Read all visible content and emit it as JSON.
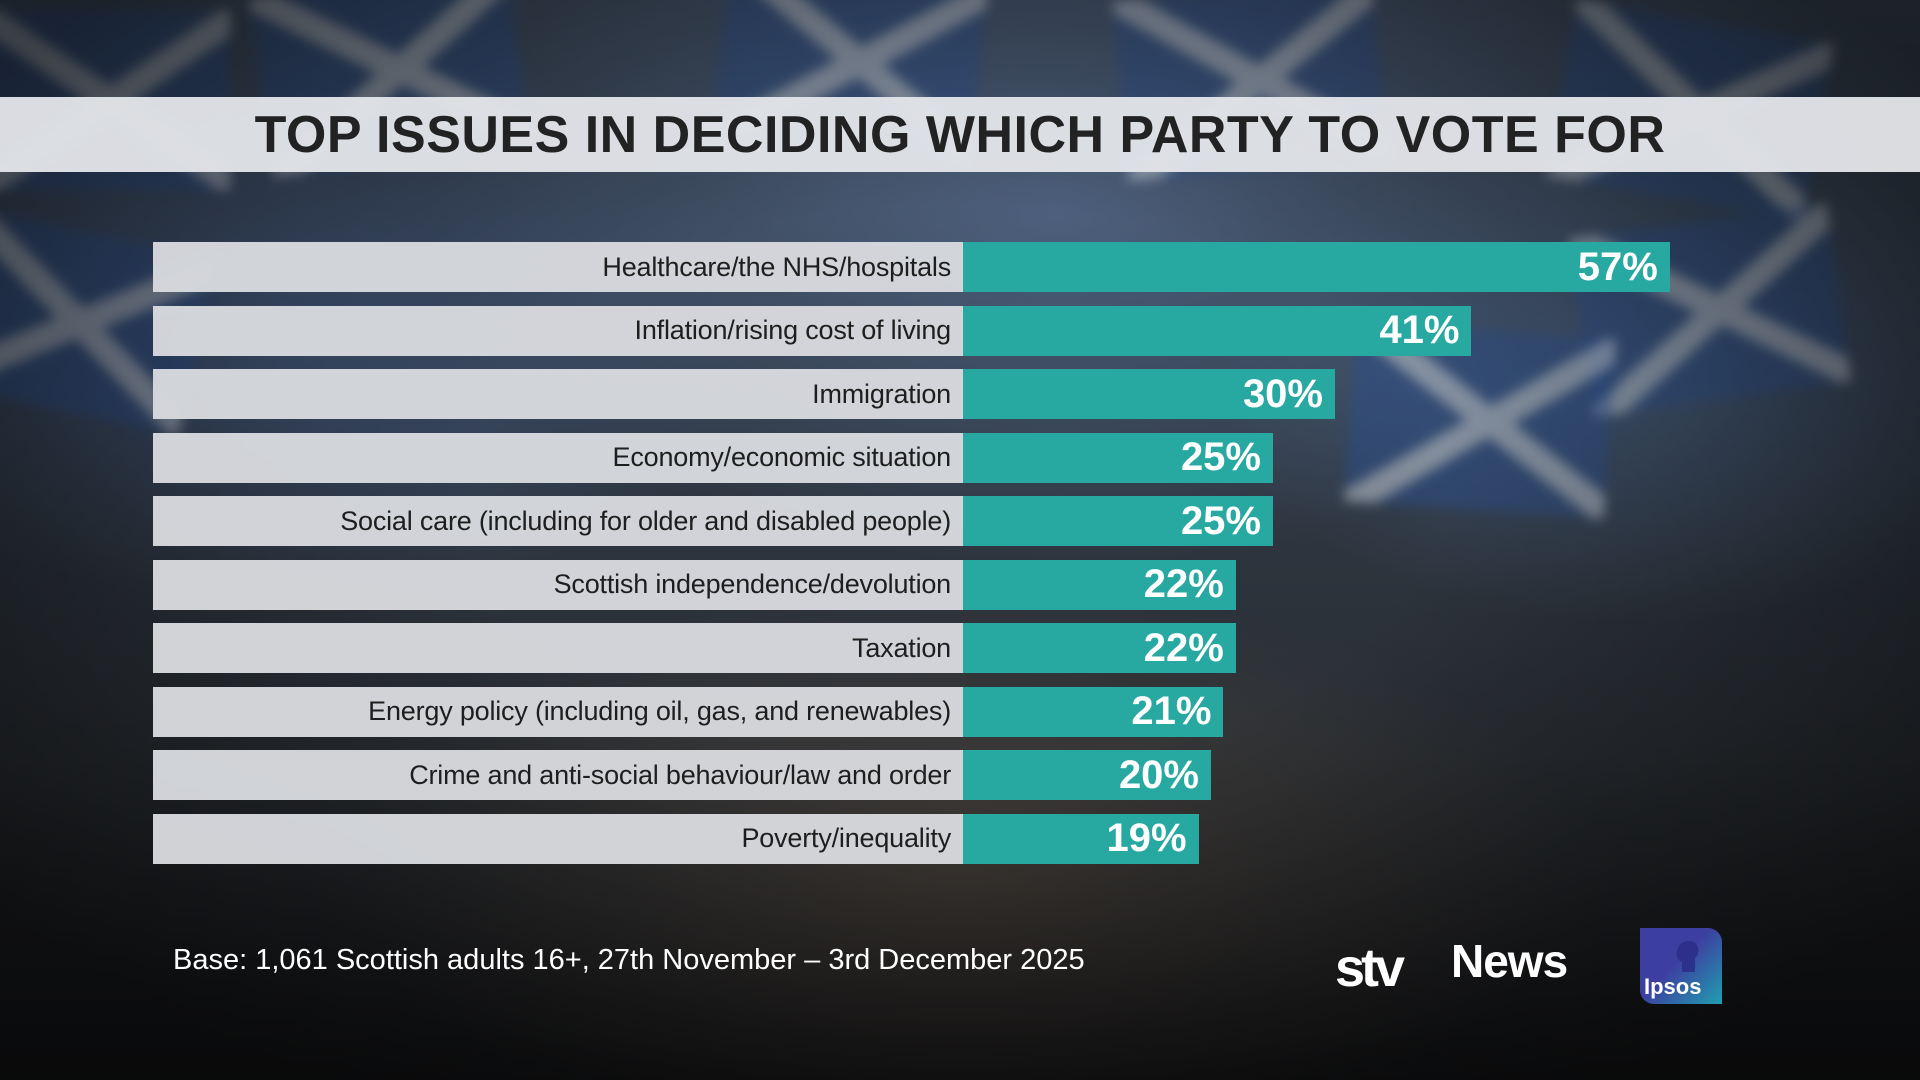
{
  "chart_data": {
    "type": "bar",
    "orientation": "horizontal",
    "title": "TOP ISSUES IN DECIDING WHICH PARTY TO VOTE FOR",
    "categories": [
      "Healthcare/the NHS/hospitals",
      "Inflation/rising cost of living",
      "Immigration",
      "Economy/economic situation",
      "Social care (including for older and disabled people)",
      "Scottish independence/devolution",
      "Taxation",
      "Energy policy (including oil, gas, and renewables)",
      "Crime and anti-social behaviour/law and order",
      "Poverty/inequality"
    ],
    "values": [
      57,
      41,
      30,
      25,
      25,
      22,
      22,
      21,
      20,
      19
    ],
    "value_labels": [
      "57%",
      "41%",
      "30%",
      "25%",
      "25%",
      "22%",
      "22%",
      "21%",
      "20%",
      "19%"
    ],
    "unit": "%",
    "xlim": [
      0,
      100
    ],
    "bar_color": "#27a9a2",
    "label_box_color": "#d7d9dd",
    "xlabel": "",
    "ylabel": ""
  },
  "footer": {
    "base_note": "Base: 1,061 Scottish adults 16+, 27th November – 3rd December 2025"
  },
  "logos": {
    "broadcaster_mark": "stv",
    "broadcaster_text": "News",
    "pollster": "Ipsos"
  },
  "colors": {
    "title_band": "#e2e4e8",
    "title_text": "#222222",
    "bar": "#27a9a2",
    "ipsos_primary": "#3d3fa0",
    "ipsos_secondary": "#1f9fb0"
  }
}
